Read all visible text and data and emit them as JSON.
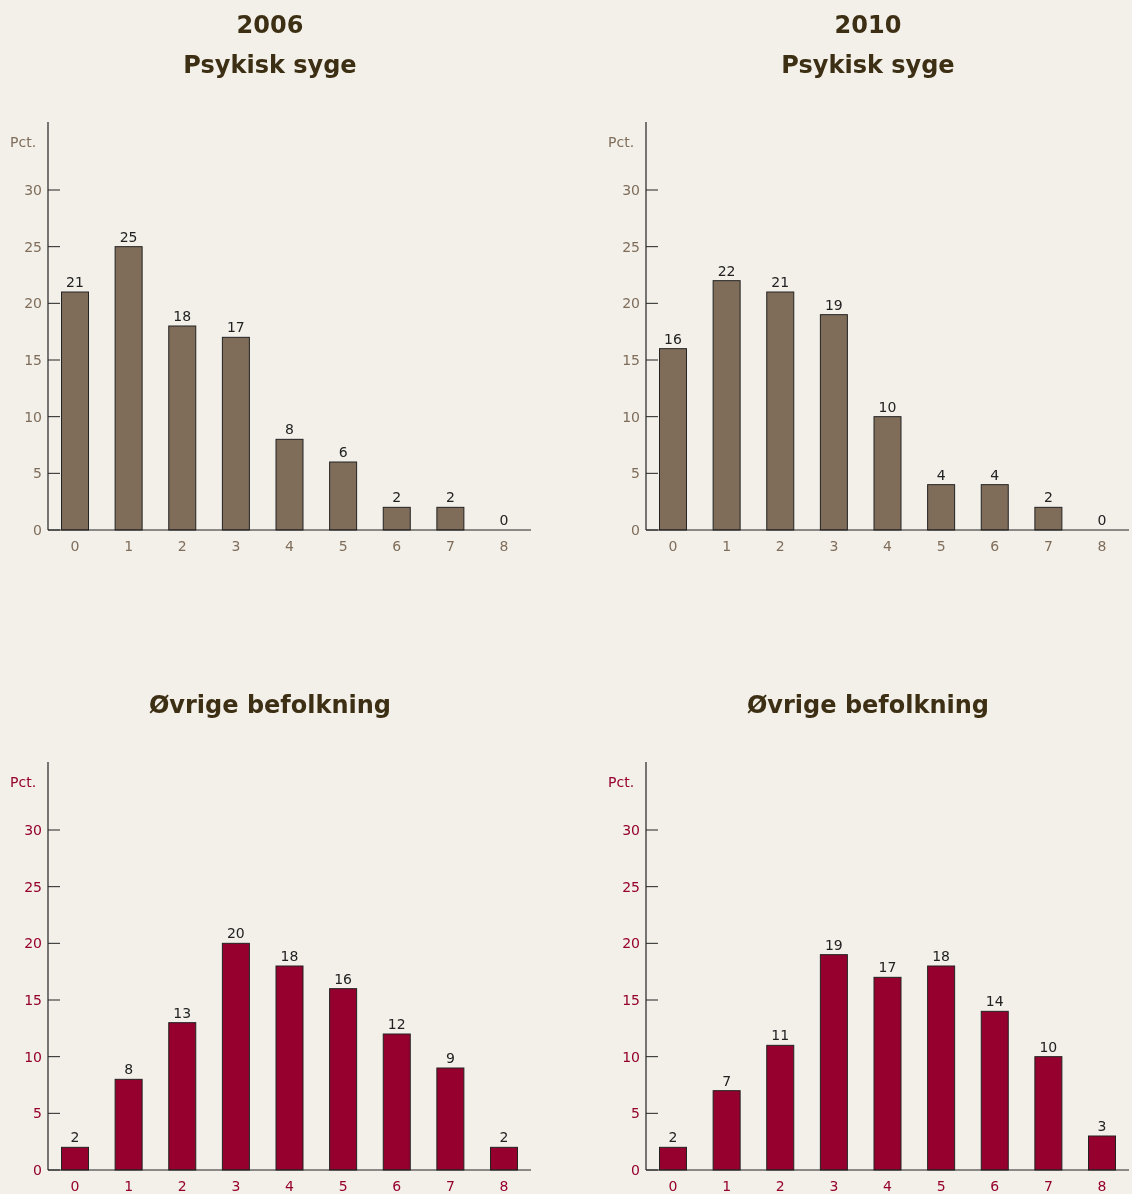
{
  "chart_data": [
    {
      "type": "bar",
      "title": "2006",
      "subtitle": "Psykisk syge",
      "ylabel": "Pct.",
      "categories": [
        "0",
        "1",
        "2",
        "3",
        "4",
        "5",
        "6",
        "7",
        "8"
      ],
      "values": [
        21,
        25,
        18,
        17,
        8,
        6,
        2,
        2,
        0
      ],
      "color": "#7f6d5a",
      "ylim": [
        0,
        36
      ],
      "yticks": [
        0,
        5,
        10,
        15,
        20,
        25,
        30
      ],
      "data_labels": true
    },
    {
      "type": "bar",
      "title": "2010",
      "subtitle": "Psykisk syge",
      "ylabel": "Pct.",
      "categories": [
        "0",
        "1",
        "2",
        "3",
        "4",
        "5",
        "6",
        "7",
        "8"
      ],
      "values": [
        16,
        22,
        21,
        19,
        10,
        4,
        4,
        2,
        0
      ],
      "color": "#7f6d5a",
      "ylim": [
        0,
        36
      ],
      "yticks": [
        0,
        5,
        10,
        15,
        20,
        25,
        30
      ],
      "data_labels": true
    },
    {
      "type": "bar",
      "title": "Øvrige befolkning",
      "ylabel": "Pct.",
      "categories": [
        "0",
        "1",
        "2",
        "3",
        "4",
        "5",
        "6",
        "7",
        "8"
      ],
      "values": [
        2,
        8,
        13,
        20,
        18,
        16,
        12,
        9,
        2
      ],
      "color": "#96002e",
      "ylim": [
        0,
        36
      ],
      "yticks": [
        0,
        5,
        10,
        15,
        20,
        25,
        30
      ],
      "data_labels": true
    },
    {
      "type": "bar",
      "title": "Øvrige befolkning",
      "ylabel": "Pct.",
      "categories": [
        "0",
        "1",
        "2",
        "3",
        "4",
        "5",
        "6",
        "7",
        "8"
      ],
      "values": [
        2,
        7,
        11,
        19,
        17,
        18,
        14,
        10,
        3
      ],
      "color": "#96002e",
      "ylim": [
        0,
        36
      ],
      "yticks": [
        0,
        5,
        10,
        15,
        20,
        25,
        30
      ],
      "data_labels": true
    }
  ]
}
